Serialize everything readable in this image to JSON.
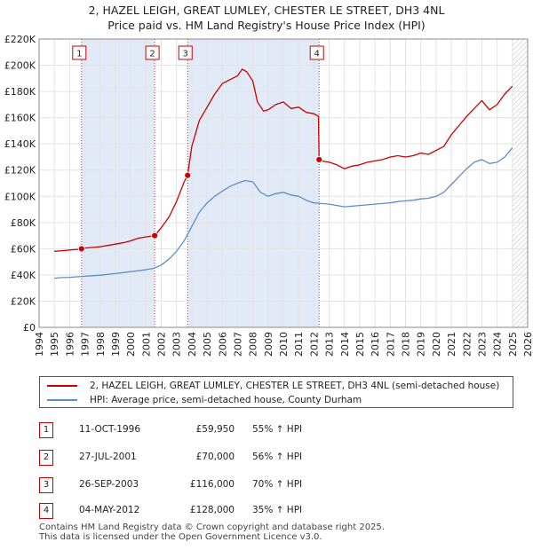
{
  "title_line1": "2, HAZEL LEIGH, GREAT LUMLEY, CHESTER LE STREET, DH3 4NL",
  "title_line2": "Price paid vs. HM Land Registry's House Price Index (HPI)",
  "colors": {
    "price": "#cc0000",
    "hpi": "#5b8ec9",
    "shade": "#dde6f7",
    "marker_border": "#cc0000"
  },
  "chart_data": {
    "type": "line",
    "xlim": [
      1994,
      2026
    ],
    "ylim": [
      0,
      220000
    ],
    "y_ticks": [
      0,
      20000,
      40000,
      60000,
      80000,
      100000,
      120000,
      140000,
      160000,
      180000,
      200000,
      220000
    ],
    "y_tick_labels": [
      "£0",
      "£20K",
      "£40K",
      "£60K",
      "£80K",
      "£100K",
      "£120K",
      "£140K",
      "£160K",
      "£180K",
      "£200K",
      "£220K"
    ],
    "x_ticks": [
      1994,
      1995,
      1996,
      1997,
      1998,
      1999,
      2000,
      2001,
      2002,
      2003,
      2004,
      2005,
      2006,
      2007,
      2008,
      2009,
      2010,
      2011,
      2012,
      2013,
      2014,
      2015,
      2016,
      2017,
      2018,
      2019,
      2020,
      2021,
      2022,
      2023,
      2024,
      2025,
      2026
    ],
    "shaded_ranges": [
      [
        1996.78,
        2001.57
      ],
      [
        2003.73,
        2012.34
      ]
    ],
    "data_end": 2025.0,
    "series": [
      {
        "name": "2, HAZEL LEIGH, GREAT LUMLEY, CHESTER LE STREET, DH3 4NL (semi-detached house)",
        "x": [
          1995.0,
          1995.5,
          1996.0,
          1996.5,
          1996.78,
          1997.0,
          1997.5,
          1998.0,
          1998.5,
          1999.0,
          1999.5,
          2000.0,
          2000.5,
          2001.0,
          2001.57,
          2002.0,
          2002.5,
          2003.0,
          2003.5,
          2003.73,
          2004.0,
          2004.5,
          2005.0,
          2005.5,
          2006.0,
          2006.5,
          2007.0,
          2007.3,
          2007.6,
          2008.0,
          2008.3,
          2008.7,
          2009.0,
          2009.5,
          2010.0,
          2010.5,
          2011.0,
          2011.5,
          2012.0,
          2012.3,
          2012.34,
          2012.5,
          2013.0,
          2013.5,
          2014.0,
          2014.5,
          2015.0,
          2015.5,
          2016.0,
          2016.5,
          2017.0,
          2017.5,
          2018.0,
          2018.5,
          2019.0,
          2019.5,
          2020.0,
          2020.5,
          2021.0,
          2021.5,
          2022.0,
          2022.5,
          2023.0,
          2023.5,
          2024.0,
          2024.5,
          2025.0
        ],
        "y": [
          58000,
          58500,
          59000,
          59500,
          59950,
          60500,
          61000,
          61500,
          62500,
          63500,
          64500,
          66000,
          68000,
          69000,
          70000,
          76000,
          84000,
          96000,
          111000,
          116000,
          138000,
          158000,
          168000,
          178000,
          186000,
          189000,
          192000,
          197000,
          195000,
          188000,
          172000,
          165000,
          166000,
          170000,
          172000,
          167000,
          168000,
          164000,
          163000,
          161000,
          128000,
          127000,
          126000,
          124000,
          121000,
          123000,
          124000,
          126000,
          127000,
          128000,
          130000,
          131000,
          130000,
          131000,
          133000,
          132000,
          135000,
          138000,
          147000,
          154000,
          161000,
          167000,
          173000,
          166000,
          170000,
          178000,
          184000
        ]
      },
      {
        "name": "HPI: Average price, semi-detached house, County Durham",
        "x": [
          1995.0,
          1995.5,
          1996.0,
          1996.5,
          1997.0,
          1997.5,
          1998.0,
          1998.5,
          1999.0,
          1999.5,
          2000.0,
          2000.5,
          2001.0,
          2001.5,
          2002.0,
          2002.5,
          2003.0,
          2003.5,
          2004.0,
          2004.5,
          2005.0,
          2005.5,
          2006.0,
          2006.5,
          2007.0,
          2007.5,
          2008.0,
          2008.5,
          2009.0,
          2009.5,
          2010.0,
          2010.5,
          2011.0,
          2011.5,
          2012.0,
          2012.5,
          2013.0,
          2013.5,
          2014.0,
          2014.5,
          2015.0,
          2015.5,
          2016.0,
          2016.5,
          2017.0,
          2017.5,
          2018.0,
          2018.5,
          2019.0,
          2019.5,
          2020.0,
          2020.5,
          2021.0,
          2021.5,
          2022.0,
          2022.5,
          2023.0,
          2023.5,
          2024.0,
          2024.5,
          2025.0
        ],
        "y": [
          37500,
          38000,
          38200,
          38600,
          39000,
          39400,
          39800,
          40400,
          41000,
          41800,
          42500,
          43200,
          44000,
          45000,
          47500,
          52000,
          58000,
          66000,
          77000,
          88000,
          95000,
          100000,
          104000,
          107500,
          110000,
          112000,
          111000,
          103000,
          100000,
          102000,
          103000,
          101000,
          100000,
          97000,
          95000,
          94500,
          94000,
          93000,
          92000,
          92500,
          93000,
          93500,
          94000,
          94500,
          95000,
          96000,
          96500,
          97000,
          98000,
          98500,
          100000,
          103000,
          109000,
          115000,
          121000,
          126000,
          128000,
          125000,
          126000,
          130000,
          137000
        ]
      }
    ],
    "sales": [
      {
        "label": "1",
        "x": 1996.78,
        "y": 59950
      },
      {
        "label": "2",
        "x": 2001.57,
        "y": 70000
      },
      {
        "label": "3",
        "x": 2003.73,
        "y": 116000
      },
      {
        "label": "4",
        "x": 2012.34,
        "y": 128000
      }
    ]
  },
  "legend": [
    {
      "label": "2, HAZEL LEIGH, GREAT LUMLEY, CHESTER LE STREET, DH3 4NL (semi-detached house)"
    },
    {
      "label": "HPI: Average price, semi-detached house, County Durham"
    }
  ],
  "transactions": [
    {
      "num": "1",
      "date": "11-OCT-1996",
      "price": "£59,950",
      "hpi": "55% ↑ HPI"
    },
    {
      "num": "2",
      "date": "27-JUL-2001",
      "price": "£70,000",
      "hpi": "56% ↑ HPI"
    },
    {
      "num": "3",
      "date": "26-SEP-2003",
      "price": "£116,000",
      "hpi": "70% ↑ HPI"
    },
    {
      "num": "4",
      "date": "04-MAY-2012",
      "price": "£128,000",
      "hpi": "35% ↑ HPI"
    }
  ],
  "footer_line1": "Contains HM Land Registry data © Crown copyright and database right 2025.",
  "footer_line2": "This data is licensed under the Open Government Licence v3.0."
}
